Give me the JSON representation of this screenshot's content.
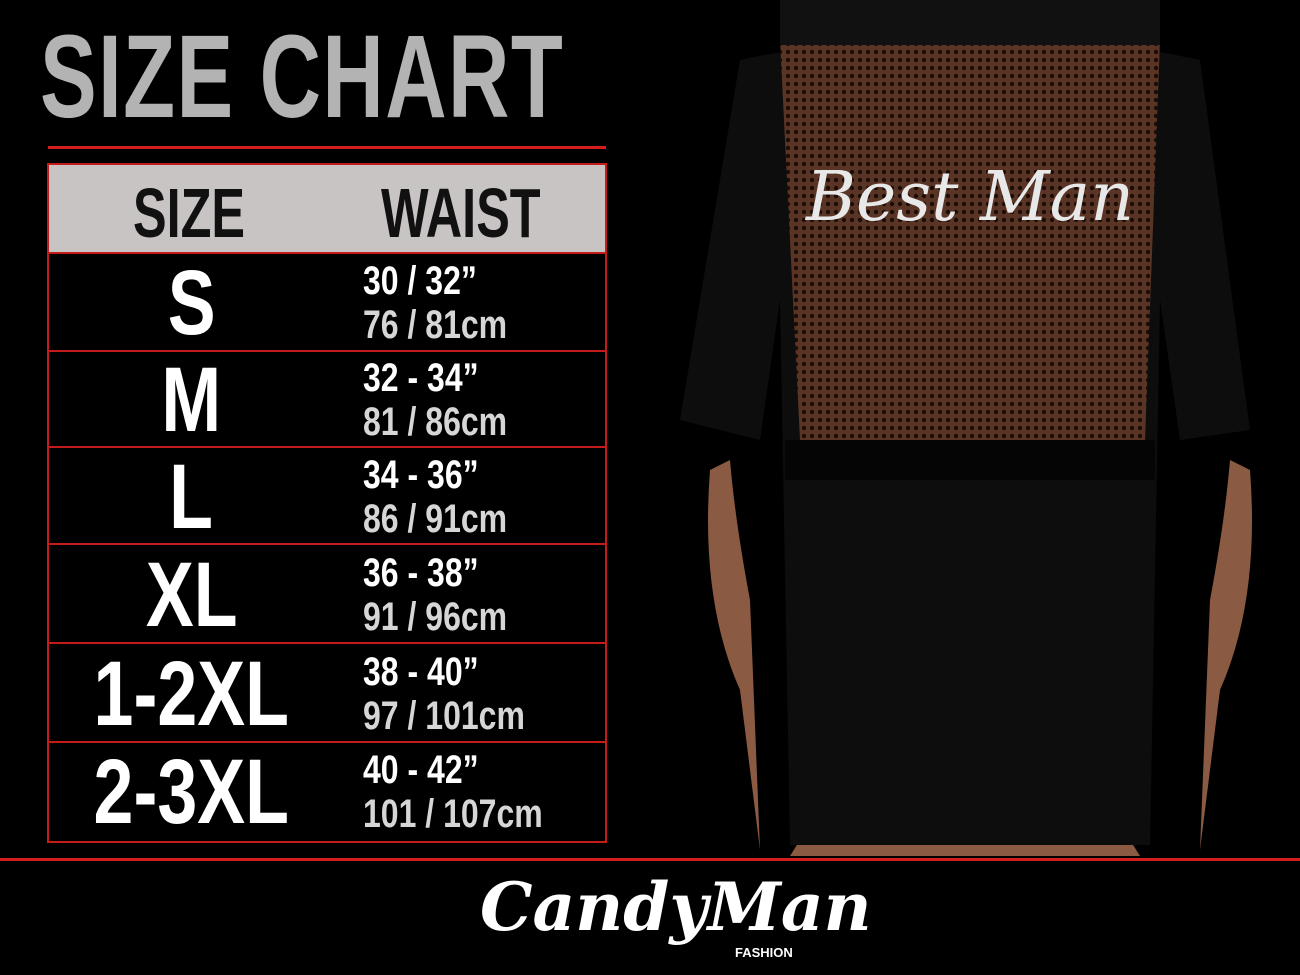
{
  "title": "SIZE CHART",
  "table": {
    "headers": [
      "SIZE",
      "WAIST"
    ],
    "rows": [
      {
        "size": "S",
        "in": "30 / 32”",
        "cm": "76 / 81cm"
      },
      {
        "size": "M",
        "in": "32 - 34”",
        "cm": "81 / 86cm"
      },
      {
        "size": "L",
        "in": "34 - 36”",
        "cm": "86 / 91cm"
      },
      {
        "size": "XL",
        "in": "36 - 38”",
        "cm": "91 / 96cm"
      },
      {
        "size": "1-2XL",
        "in": "38 - 40”",
        "cm": "97 / 101cm"
      },
      {
        "size": "2-3XL",
        "in": "40 - 42”",
        "cm": "101 / 107cm"
      }
    ]
  },
  "garment_print": "Best Man",
  "brand": {
    "name": "CandyMan",
    "sub": "FASHION"
  },
  "colors": {
    "accent": "#d41e1e",
    "header_bg": "#c8c4c4",
    "title": "#b3b3b3"
  }
}
